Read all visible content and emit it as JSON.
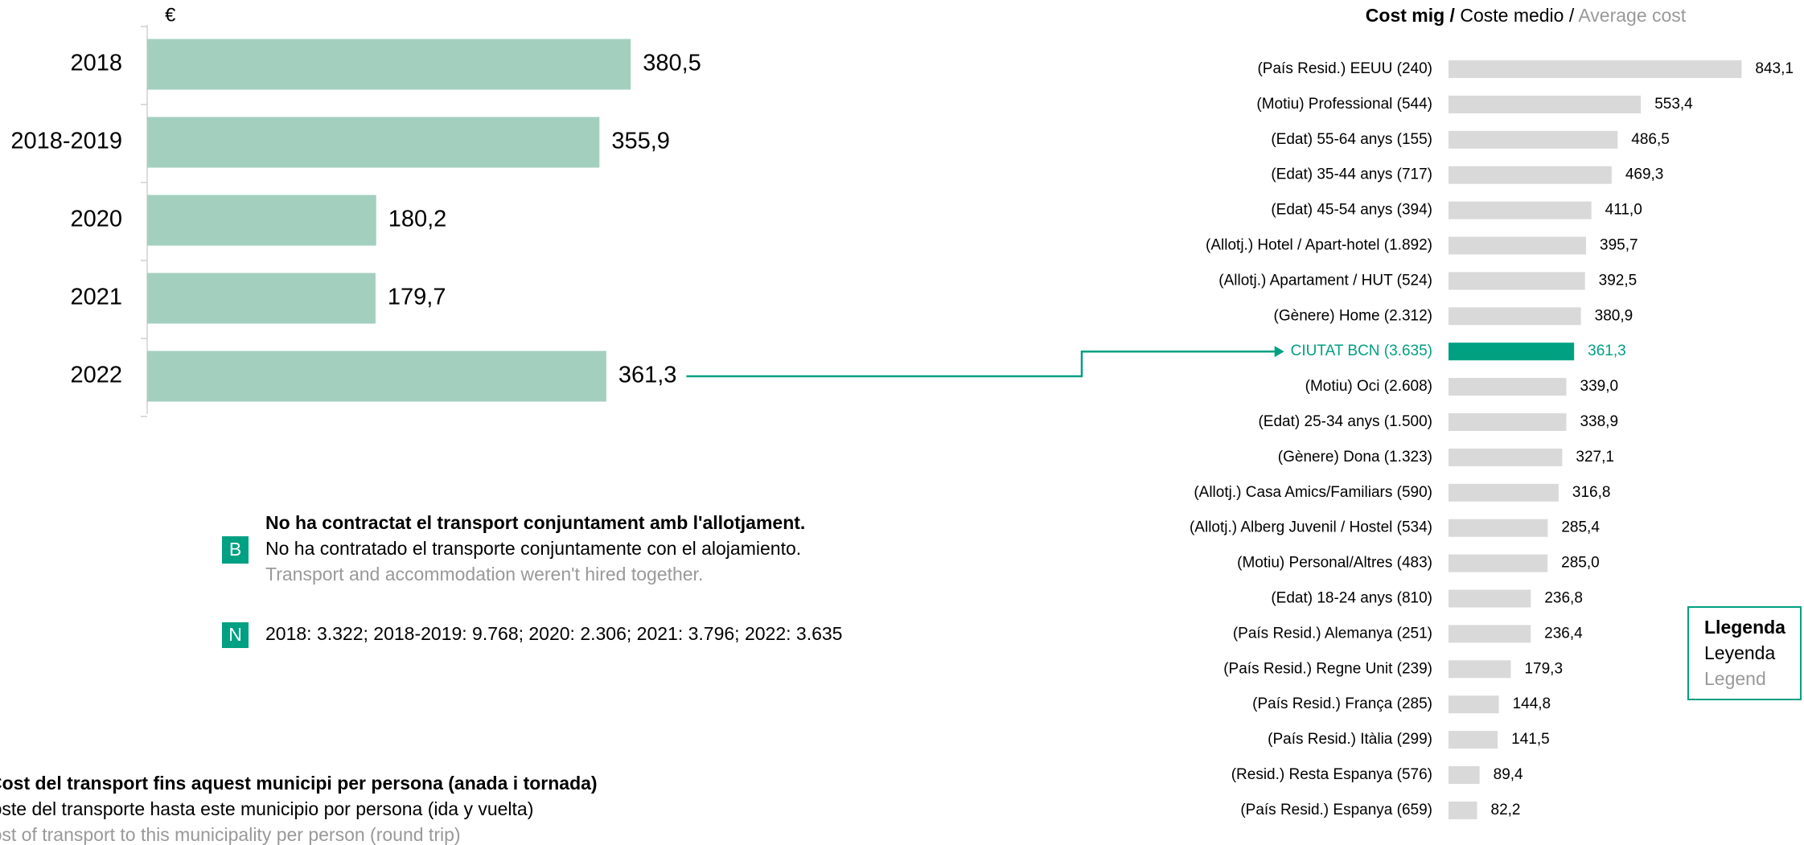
{
  "chart_data": [
    {
      "type": "bar",
      "orientation": "horizontal",
      "unit": "€",
      "categories": [
        "2018",
        "2018-2019",
        "2020",
        "2021",
        "2022"
      ],
      "values": [
        380.5,
        355.9,
        180.2,
        179.7,
        361.3
      ],
      "value_labels": [
        "380,5",
        "355,9",
        "180,2",
        "179,7",
        "361,3"
      ],
      "color": "#a3cfbf",
      "xlim": [
        0,
        400
      ]
    },
    {
      "type": "bar",
      "orientation": "horizontal",
      "title_parts": [
        "Cost mig /",
        "Coste medio",
        "/",
        "Average cost"
      ],
      "categories": [
        "(País Resid.) EEUU (240)",
        "(Motiu) Professional (544)",
        "(Edat) 55-64 anys (155)",
        "(Edat) 35-44 anys (717)",
        "(Edat) 45-54 anys (394)",
        "(Allotj.) Hotel / Apart-hotel (1.892)",
        "(Allotj.) Apartament / HUT (524)",
        "(Gènere) Home (2.312)",
        "CIUTAT BCN (3.635)",
        "(Motiu) Oci (2.608)",
        "(Edat) 25-34 anys  (1.500)",
        "(Gènere) Dona (1.323)",
        "(Allotj.) Casa Amics/Familiars (590)",
        "(Allotj.) Alberg Juvenil / Hostel  (534)",
        "(Motiu) Personal/Altres (483)",
        "(Edat) 18-24 anys (810)",
        "(País Resid.) Alemanya (251)",
        "(País Resid.) Regne Unit (239)",
        "(País Resid.) França (285)",
        "(País Resid.) Itàlia (299)",
        "(Resid.) Resta Espanya (576)",
        "(País Resid.) Espanya (659)"
      ],
      "values": [
        843.1,
        553.4,
        486.5,
        469.3,
        411.0,
        395.7,
        392.5,
        380.9,
        361.3,
        339.0,
        338.9,
        327.1,
        316.8,
        285.4,
        285.0,
        236.8,
        236.4,
        179.3,
        144.8,
        141.5,
        89.4,
        82.2
      ],
      "value_labels": [
        "843,1",
        "553,4",
        "486,5",
        "469,3",
        "411,0",
        "395,7",
        "392,5",
        "380,9",
        "361,3",
        "339,0",
        "338,9",
        "327,1",
        "316,8",
        "285,4",
        "285,0",
        "236,8",
        "236,4",
        "179,3",
        "144,8",
        "141,5",
        "89,4",
        "82,2"
      ],
      "colors": [
        "#d9d9d9",
        "#d9d9d9",
        "#d9d9d9",
        "#d9d9d9",
        "#d9d9d9",
        "#d9d9d9",
        "#d9d9d9",
        "#d9d9d9",
        "#00a082",
        "#d9d9d9",
        "#d9d9d9",
        "#d9d9d9",
        "#d9d9d9",
        "#d9d9d9",
        "#d9d9d9",
        "#d9d9d9",
        "#d9d9d9",
        "#d9d9d9",
        "#d9d9d9",
        "#d9d9d9",
        "#d9d9d9",
        "#d9d9d9"
      ],
      "xlim": [
        0,
        900
      ]
    }
  ],
  "notes": [
    {
      "badge": "B",
      "lines": [
        "No ha contractat el transport conjuntament amb l'allotjament.",
        "No ha contratado el transporte conjuntamente con el alojamiento.",
        "Transport and accommodation weren't hired together."
      ]
    },
    {
      "badge": "N",
      "lines": [
        "2018: 3.322; 2018-2019: 9.768; 2020: 2.306; 2021: 3.796; 2022: 3.635"
      ]
    }
  ],
  "caption": [
    "Cost del transport fins aquest municipi per persona (anada i tornada)",
    "Coste del transporte hasta este municipio por persona (ida y vuelta)",
    "Cost of transport to this municipality per person (round trip)"
  ],
  "legend_box": [
    "Llegenda",
    "Leyenda",
    "Legend"
  ]
}
